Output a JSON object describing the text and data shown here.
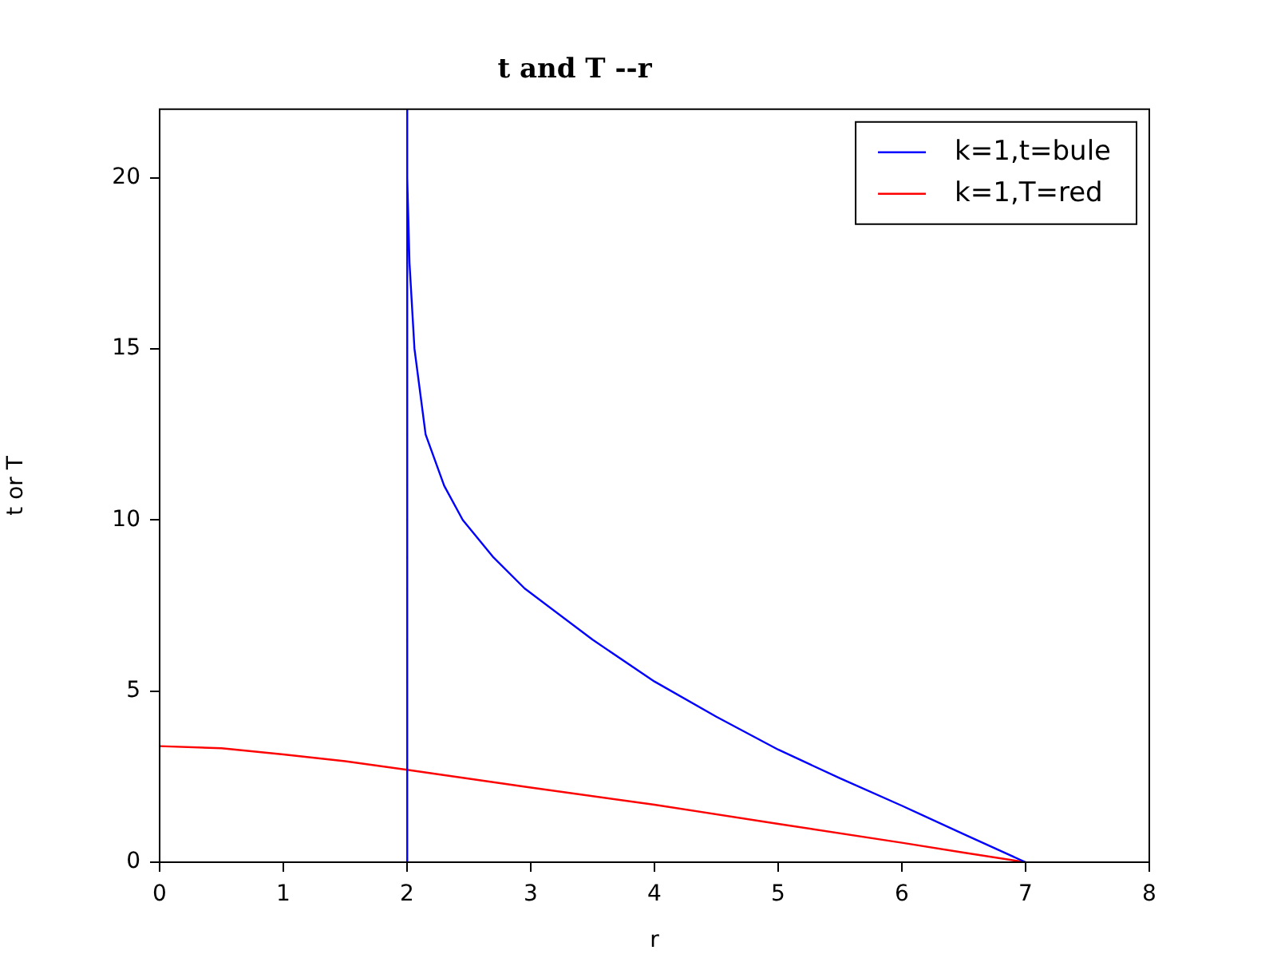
{
  "chart_data": {
    "type": "line",
    "title": "t and T --r",
    "xlabel": "r",
    "ylabel": "t or T",
    "xlim": [
      0,
      8
    ],
    "xticks": [
      0,
      1,
      2,
      3,
      4,
      5,
      6,
      7,
      8
    ],
    "ylim": [
      0,
      22
    ],
    "yticks": [
      0,
      5,
      10,
      15,
      20
    ],
    "legend": "top right",
    "grid": false,
    "marker": "none",
    "line_style": "solid",
    "series": [
      {
        "name": "k=1,t=bule",
        "color": "#0000ff",
        "x": [
          2,
          2,
          2.003,
          2.02,
          2.06,
          2.15,
          2.3,
          2.45,
          2.7,
          2.95,
          3.5,
          4,
          4.5,
          5,
          5.5,
          6,
          6.5,
          7
        ],
        "values": [
          0,
          22,
          20,
          17.5,
          15,
          12.5,
          11,
          10,
          8.9,
          8,
          6.5,
          5.28,
          4.25,
          3.29,
          2.45,
          1.65,
          0.82,
          0
        ]
      },
      {
        "name": "k=1,T=red",
        "color": "#ff0000",
        "x": [
          0,
          0.5,
          1,
          1.5,
          2,
          3,
          4,
          5,
          6,
          6.5,
          7
        ],
        "values": [
          3.39,
          3.33,
          3.15,
          2.95,
          2.7,
          2.18,
          1.68,
          1.12,
          0.57,
          0.28,
          0
        ]
      }
    ]
  }
}
